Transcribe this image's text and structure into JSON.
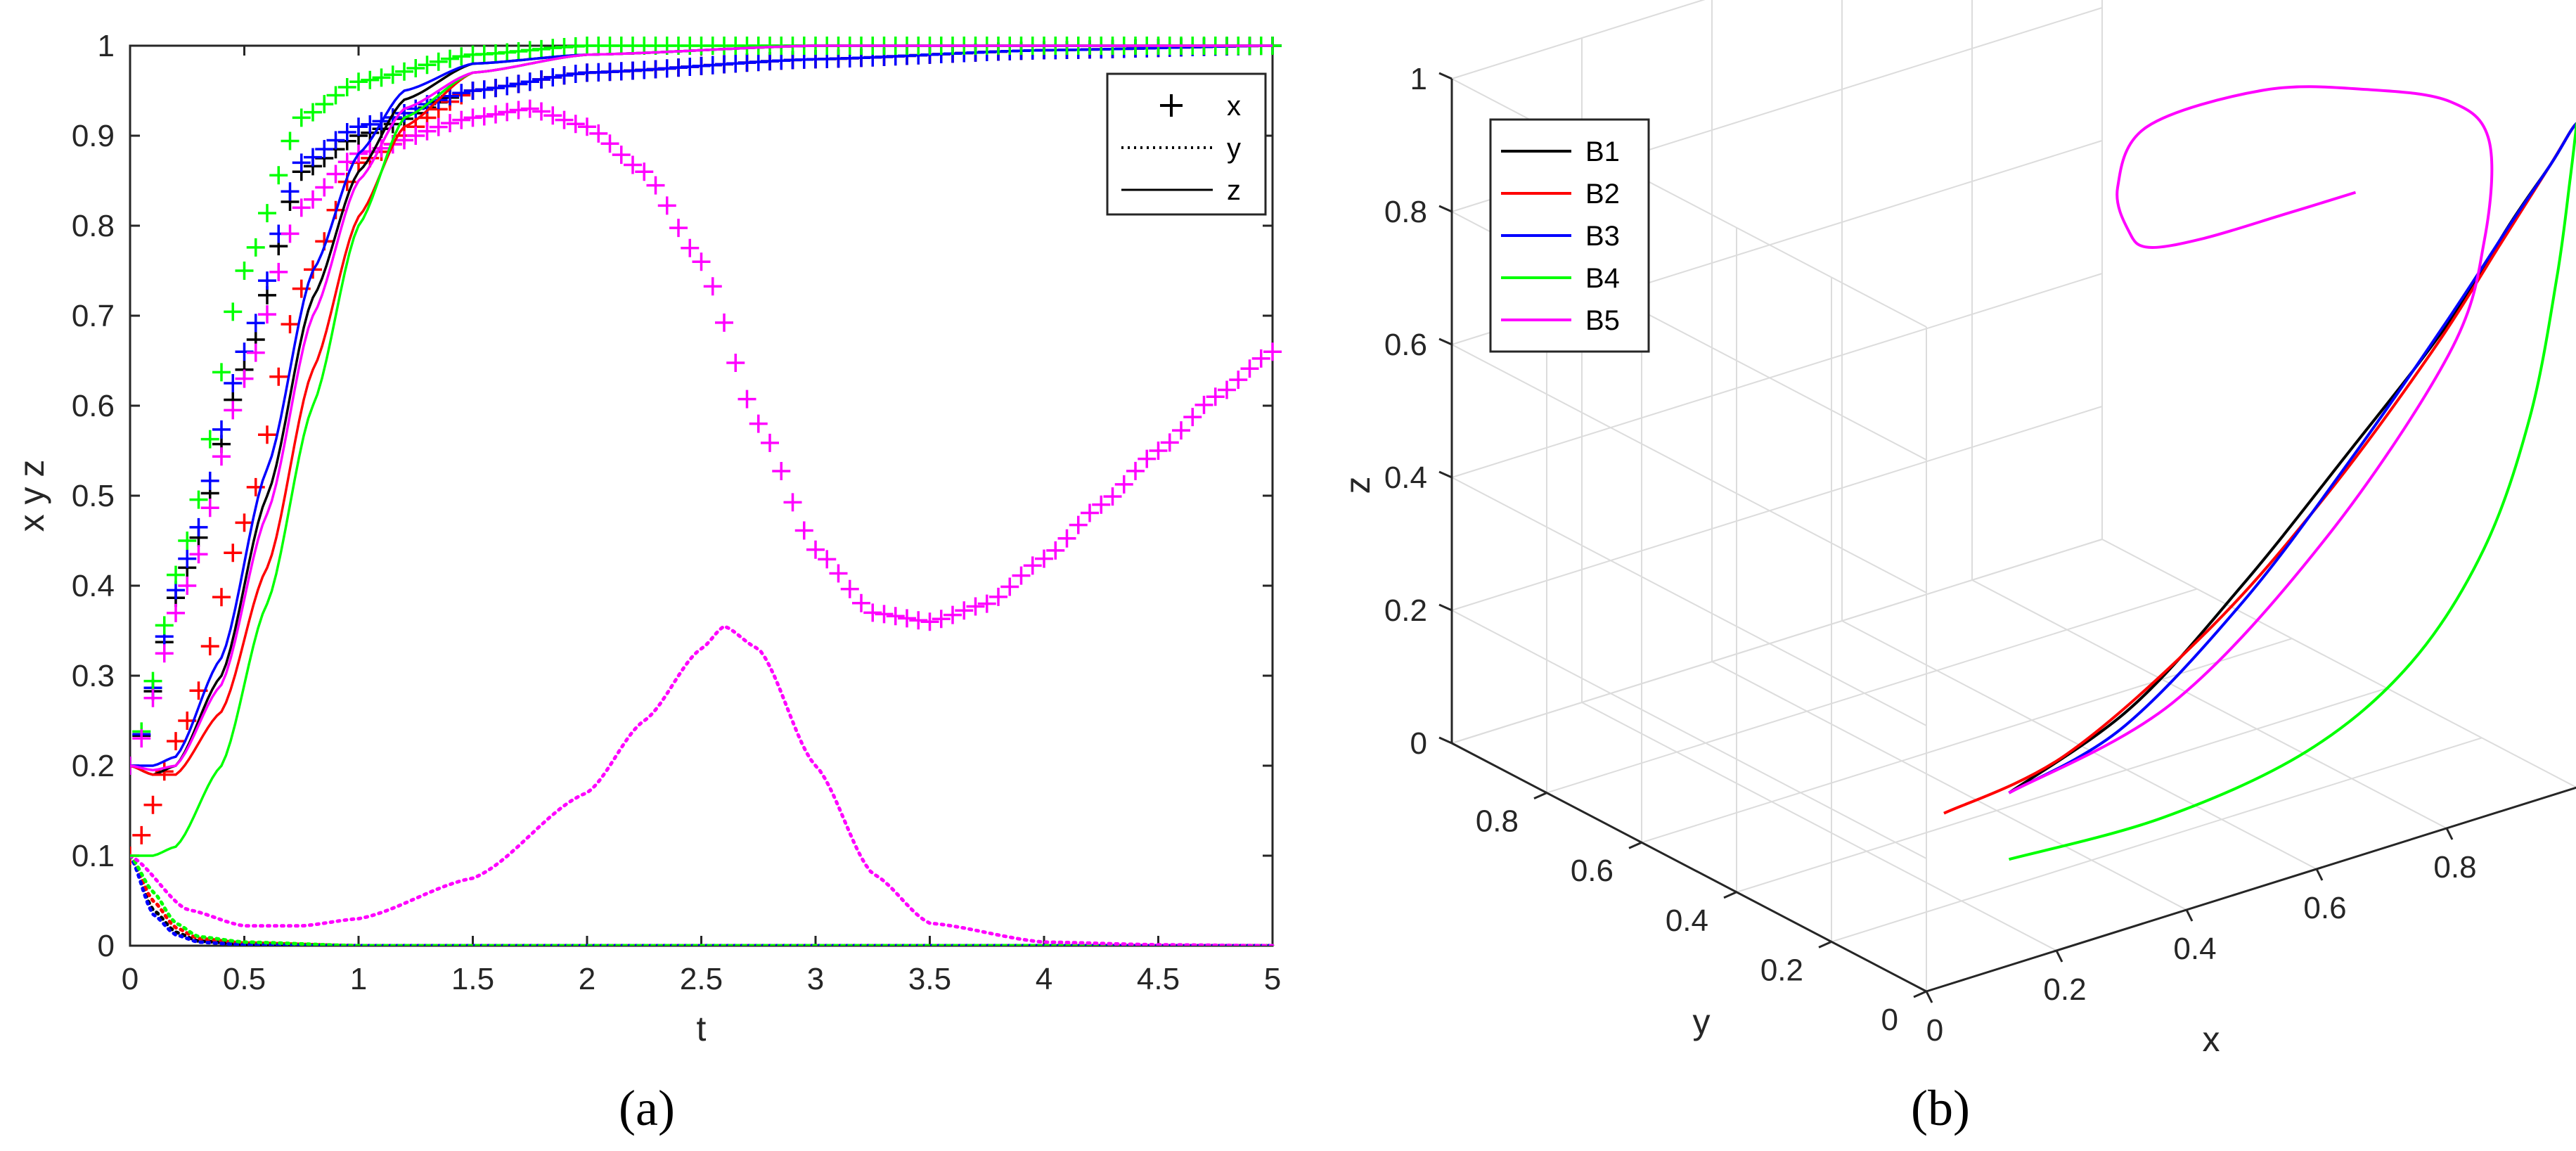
{
  "figure": {
    "panels": [
      {
        "caption": "(a)"
      },
      {
        "caption": "(b)"
      }
    ]
  },
  "chart_data": [
    {
      "type": "line",
      "panel": "a",
      "xlabel": "t",
      "ylabel": "x y z",
      "xlim": [
        0,
        5
      ],
      "ylim": [
        0,
        1
      ],
      "xticks": [
        "0",
        "0.5",
        "1",
        "1.5",
        "2",
        "2.5",
        "3",
        "3.5",
        "4",
        "4.5",
        "5"
      ],
      "yticks": [
        "0",
        "0.1",
        "0.2",
        "0.3",
        "0.4",
        "0.5",
        "0.6",
        "0.7",
        "0.8",
        "0.9",
        "1"
      ],
      "grid": false,
      "legend": {
        "placement": "top-right",
        "entries": [
          {
            "label": "x",
            "marker": "+"
          },
          {
            "label": "y",
            "style": "dotted"
          },
          {
            "label": "z",
            "style": "solid"
          }
        ]
      },
      "colors": {
        "B1": "#000000",
        "B2": "#ff0000",
        "B3": "#0000ff",
        "B4": "#00ff00",
        "B5": "#ff00ff"
      },
      "series": [
        {
          "color": "#000000",
          "variable": "x",
          "x": [
            0,
            0.25,
            0.5,
            0.75,
            1,
            1.5,
            2,
            3,
            4,
            5
          ],
          "values": [
            0.2,
            0.42,
            0.64,
            0.86,
            0.9,
            0.95,
            0.97,
            0.985,
            0.995,
            1.0
          ]
        },
        {
          "color": "#ff0000",
          "variable": "x",
          "x": [
            0,
            0.25,
            0.5,
            0.75,
            1,
            1.5,
            2,
            3,
            4,
            5
          ],
          "values": [
            0.1,
            0.25,
            0.47,
            0.73,
            0.87,
            0.95,
            0.97,
            0.985,
            0.995,
            1.0
          ]
        },
        {
          "color": "#0000ff",
          "variable": "x",
          "x": [
            0,
            0.25,
            0.5,
            0.75,
            1,
            1.5,
            2,
            3,
            4,
            5
          ],
          "values": [
            0.2,
            0.43,
            0.66,
            0.87,
            0.91,
            0.95,
            0.97,
            0.985,
            0.995,
            1.0
          ]
        },
        {
          "color": "#00ff00",
          "variable": "x",
          "x": [
            0,
            0.25,
            0.5,
            0.75,
            1,
            1.5,
            2,
            3,
            4,
            5
          ],
          "values": [
            0.2,
            0.45,
            0.75,
            0.92,
            0.96,
            0.99,
            1.0,
            1.0,
            1.0,
            1.0
          ]
        },
        {
          "color": "#ff00ff",
          "variable": "x",
          "x": [
            0,
            0.25,
            0.5,
            0.75,
            1,
            1.5,
            1.75,
            2,
            2.25,
            2.5,
            2.75,
            3,
            3.25,
            3.5,
            3.75,
            4,
            4.25,
            4.5,
            4.75,
            5
          ],
          "values": [
            0.2,
            0.4,
            0.63,
            0.82,
            0.88,
            0.92,
            0.93,
            0.91,
            0.86,
            0.76,
            0.58,
            0.44,
            0.37,
            0.36,
            0.38,
            0.43,
            0.49,
            0.55,
            0.61,
            0.66
          ]
        },
        {
          "color": "#000000",
          "variable": "y",
          "x": [
            0,
            0.1,
            0.2,
            0.3,
            0.5,
            1,
            5
          ],
          "values": [
            0.1,
            0.04,
            0.015,
            0.005,
            0.002,
            0.0,
            0.0
          ]
        },
        {
          "color": "#ff0000",
          "variable": "y",
          "x": [
            0,
            0.1,
            0.2,
            0.3,
            0.5,
            1,
            5
          ],
          "values": [
            0.1,
            0.05,
            0.02,
            0.008,
            0.003,
            0.0,
            0.0
          ]
        },
        {
          "color": "#0000ff",
          "variable": "y",
          "x": [
            0,
            0.1,
            0.2,
            0.3,
            0.5,
            1,
            5
          ],
          "values": [
            0.1,
            0.035,
            0.012,
            0.004,
            0.001,
            0.0,
            0.0
          ]
        },
        {
          "color": "#00ff00",
          "variable": "y",
          "x": [
            0,
            0.1,
            0.2,
            0.3,
            0.5,
            1,
            5
          ],
          "values": [
            0.1,
            0.06,
            0.025,
            0.01,
            0.004,
            0.0,
            0.0
          ]
        },
        {
          "color": "#ff00ff",
          "variable": "y",
          "x": [
            0,
            0.25,
            0.5,
            0.75,
            1,
            1.5,
            2,
            2.25,
            2.5,
            2.6,
            2.75,
            3,
            3.25,
            3.5,
            4,
            4.5,
            5
          ],
          "values": [
            0.1,
            0.04,
            0.022,
            0.022,
            0.03,
            0.075,
            0.17,
            0.25,
            0.33,
            0.355,
            0.33,
            0.2,
            0.08,
            0.025,
            0.004,
            0.001,
            0.0
          ]
        },
        {
          "color": "#000000",
          "variable": "z",
          "x": [
            0,
            0.1,
            0.2,
            0.4,
            0.6,
            0.8,
            1,
            1.2,
            1.5,
            2,
            3,
            5
          ],
          "values": [
            0.2,
            0.19,
            0.2,
            0.3,
            0.5,
            0.72,
            0.86,
            0.94,
            0.98,
            0.99,
            1.0,
            1.0
          ]
        },
        {
          "color": "#ff0000",
          "variable": "z",
          "x": [
            0,
            0.1,
            0.2,
            0.4,
            0.6,
            0.8,
            1,
            1.2,
            1.5,
            2,
            3,
            5
          ],
          "values": [
            0.2,
            0.19,
            0.19,
            0.26,
            0.42,
            0.64,
            0.81,
            0.91,
            0.97,
            0.99,
            1.0,
            1.0
          ]
        },
        {
          "color": "#0000ff",
          "variable": "z",
          "x": [
            0,
            0.1,
            0.2,
            0.4,
            0.6,
            0.8,
            1,
            1.2,
            1.5,
            2,
            3,
            5
          ],
          "values": [
            0.2,
            0.2,
            0.21,
            0.32,
            0.53,
            0.75,
            0.88,
            0.95,
            0.98,
            0.99,
            1.0,
            1.0
          ]
        },
        {
          "color": "#00ff00",
          "variable": "z",
          "x": [
            0,
            0.1,
            0.2,
            0.4,
            0.6,
            0.8,
            1,
            1.2,
            1.5,
            2,
            3,
            5
          ],
          "values": [
            0.1,
            0.1,
            0.11,
            0.2,
            0.38,
            0.6,
            0.8,
            0.92,
            0.97,
            0.99,
            1.0,
            1.0
          ]
        },
        {
          "color": "#ff00ff",
          "variable": "z",
          "x": [
            0,
            0.1,
            0.2,
            0.4,
            0.6,
            0.8,
            1,
            1.2,
            1.5,
            2,
            3,
            5
          ],
          "values": [
            0.2,
            0.195,
            0.2,
            0.29,
            0.48,
            0.7,
            0.85,
            0.93,
            0.97,
            0.99,
            1.0,
            1.0
          ]
        }
      ]
    },
    {
      "type": "line3d",
      "panel": "b",
      "xlabel": "x",
      "ylabel": "y",
      "zlabel": "z",
      "xlim": [
        0,
        1
      ],
      "ylim": [
        0,
        1
      ],
      "zlim": [
        0,
        1
      ],
      "xticks": [
        "0",
        "0.2",
        "0.4",
        "0.6",
        "0.8"
      ],
      "yticks": [
        "0",
        "0.2",
        "0.4",
        "0.6",
        "0.8"
      ],
      "zticks": [
        "0",
        "0.2",
        "0.4",
        "0.6",
        "0.8",
        "1"
      ],
      "grid": true,
      "legend": {
        "placement": "top-left"
      },
      "series": [
        {
          "name": "B1",
          "color": "#000000",
          "points": [
            [
              0.2,
              0.1,
              0.2
            ],
            [
              0.35,
              0.05,
              0.3
            ],
            [
              0.5,
              0.02,
              0.45
            ],
            [
              0.65,
              0.01,
              0.6
            ],
            [
              0.8,
              0.005,
              0.75
            ],
            [
              0.9,
              0.002,
              0.88
            ],
            [
              0.96,
              0.0,
              0.95
            ],
            [
              0.99,
              0.0,
              0.99
            ],
            [
              1.0,
              0.0,
              1.0
            ]
          ]
        },
        {
          "name": "B2",
          "color": "#ff0000",
          "points": [
            [
              0.1,
              0.1,
              0.2
            ],
            [
              0.25,
              0.05,
              0.26
            ],
            [
              0.45,
              0.02,
              0.4
            ],
            [
              0.62,
              0.01,
              0.55
            ],
            [
              0.78,
              0.005,
              0.72
            ],
            [
              0.89,
              0.002,
              0.86
            ],
            [
              0.96,
              0.0,
              0.95
            ],
            [
              0.99,
              0.0,
              0.99
            ],
            [
              1.0,
              0.0,
              1.0
            ]
          ]
        },
        {
          "name": "B3",
          "color": "#0000ff",
          "points": [
            [
              0.2,
              0.1,
              0.2
            ],
            [
              0.33,
              0.04,
              0.28
            ],
            [
              0.5,
              0.015,
              0.43
            ],
            [
              0.66,
              0.006,
              0.6
            ],
            [
              0.8,
              0.002,
              0.76
            ],
            [
              0.9,
              0.001,
              0.88
            ],
            [
              0.96,
              0.0,
              0.95
            ],
            [
              0.99,
              0.0,
              0.99
            ],
            [
              1.0,
              0.0,
              1.0
            ]
          ]
        },
        {
          "name": "B4",
          "color": "#00ff00",
          "points": [
            [
              0.2,
              0.1,
              0.1
            ],
            [
              0.4,
              0.05,
              0.12
            ],
            [
              0.6,
              0.02,
              0.17
            ],
            [
              0.75,
              0.008,
              0.26
            ],
            [
              0.86,
              0.004,
              0.4
            ],
            [
              0.93,
              0.002,
              0.58
            ],
            [
              0.97,
              0.0,
              0.78
            ],
            [
              0.99,
              0.0,
              0.92
            ],
            [
              1.0,
              0.0,
              1.0
            ]
          ]
        },
        {
          "name": "B5",
          "color": "#ff00ff",
          "points": [
            [
              0.2,
              0.1,
              0.2
            ],
            [
              0.4,
              0.03,
              0.3
            ],
            [
              0.63,
              0.022,
              0.48
            ],
            [
              0.82,
              0.022,
              0.7
            ],
            [
              0.88,
              0.03,
              0.85
            ],
            [
              0.92,
              0.075,
              0.97
            ],
            [
              0.93,
              0.17,
              0.99
            ],
            [
              0.86,
              0.25,
              1.0
            ],
            [
              0.76,
              0.33,
              1.0
            ],
            [
              0.58,
              0.33,
              1.0
            ],
            [
              0.44,
              0.2,
              1.0
            ],
            [
              0.37,
              0.08,
              1.0
            ],
            [
              0.36,
              0.025,
              1.0
            ],
            [
              0.43,
              0.004,
              1.0
            ],
            [
              0.55,
              0.001,
              1.0
            ],
            [
              0.66,
              0.0,
              1.0
            ]
          ]
        }
      ]
    }
  ]
}
